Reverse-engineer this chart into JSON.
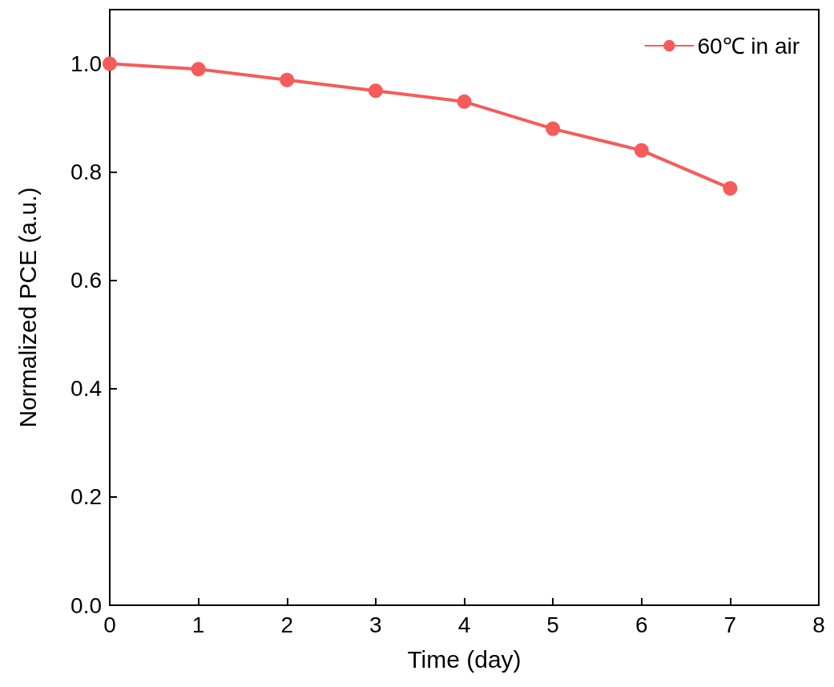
{
  "chart_data": {
    "type": "line",
    "xlabel": "Time (day)",
    "ylabel": "Normalized PCE (a.u.)",
    "x": [
      0,
      1,
      2,
      3,
      4,
      5,
      6,
      7
    ],
    "series": [
      {
        "name": "60℃ in air",
        "color": "#f55b5b",
        "values": [
          1.0,
          0.99,
          0.97,
          0.95,
          0.93,
          0.88,
          0.84,
          0.77
        ]
      }
    ],
    "xlim": [
      0,
      8
    ],
    "xticks": [
      0,
      1,
      2,
      3,
      4,
      5,
      6,
      7,
      8
    ],
    "ylim": [
      0,
      1.1
    ],
    "yticks": [
      {
        "value": 0,
        "label": "0.0"
      },
      {
        "value": 0.2,
        "label": "0.2"
      },
      {
        "value": 0.4,
        "label": "0.4"
      },
      {
        "value": 0.6,
        "label": "0.6"
      },
      {
        "value": 0.8,
        "label": "0.8"
      },
      {
        "value": 1.0,
        "label": "1.0"
      }
    ],
    "legend": "top right",
    "marker": "circle",
    "line_style": "solid",
    "grid": false
  }
}
